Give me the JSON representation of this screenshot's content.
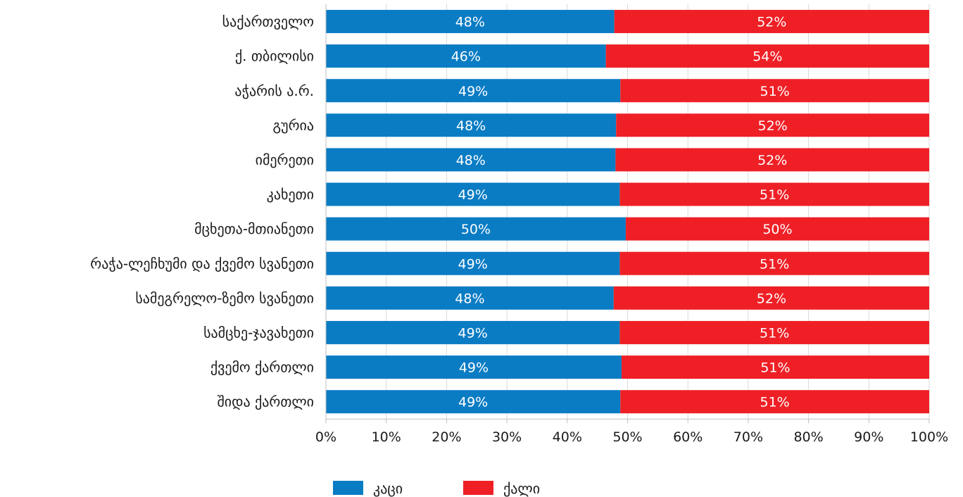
{
  "chart_data": {
    "type": "bar",
    "orientation": "horizontal",
    "stacked": true,
    "categories": [
      "საქართველო",
      "ქ. თბილისი",
      "აჭარის ა.რ.",
      "გურია",
      "იმერეთი",
      "კახეთი",
      "მცხეთა-მთიანეთი",
      "რაჭა-ლეჩხუმი და ქვემო სვანეთი",
      "სამეგრელო-ზემო სვანეთი",
      "სამცხე-ჯავახეთი",
      "ქვემო ქართლი",
      "შიდა ქართლი"
    ],
    "series": [
      {
        "name": "კაცი",
        "color": "#0a7cc4",
        "values": [
          47.8,
          46.4,
          48.8,
          48.1,
          48.0,
          48.7,
          49.7,
          48.7,
          47.7,
          48.7,
          49.0,
          48.8
        ],
        "labels": [
          "48%",
          "46%",
          "49%",
          "48%",
          "48%",
          "49%",
          "50%",
          "49%",
          "48%",
          "49%",
          "49%",
          "49%"
        ]
      },
      {
        "name": "ქალი",
        "color": "#ee2026",
        "values": [
          52.2,
          53.6,
          51.2,
          51.9,
          52.0,
          51.3,
          50.3,
          51.3,
          52.3,
          51.3,
          51.0,
          51.2
        ],
        "labels": [
          "52%",
          "54%",
          "51%",
          "52%",
          "52%",
          "51%",
          "50%",
          "51%",
          "52%",
          "51%",
          "51%",
          "51%"
        ]
      }
    ],
    "xlim": [
      0,
      100
    ],
    "x_ticks": [
      "0%",
      "10%",
      "20%",
      "30%",
      "40%",
      "50%",
      "60%",
      "70%",
      "80%",
      "90%",
      "100%"
    ],
    "grid": true,
    "legend_position": "bottom-center"
  }
}
